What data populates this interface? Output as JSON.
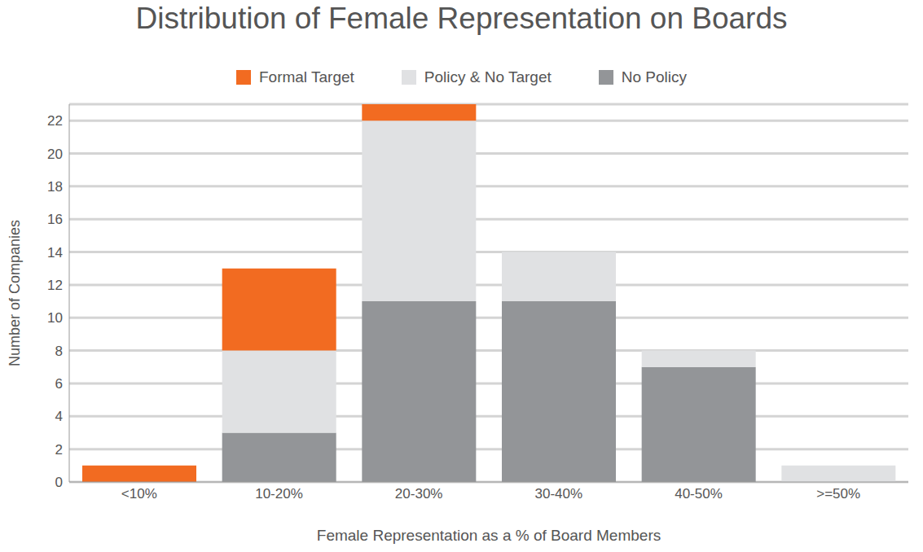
{
  "chart_data": {
    "type": "bar",
    "title": "Distribution of Female Representation on Boards",
    "x_label": "Female Representation as a % of Board Members",
    "y_label": "Number of Companies",
    "categories": [
      "<10%",
      "10-20%",
      "20-30%",
      "30-40%",
      "40-50%",
      ">=50%"
    ],
    "series": [
      {
        "name": "Formal Target",
        "color": "#f26b21",
        "values": [
          1,
          5,
          1,
          0,
          0,
          0
        ]
      },
      {
        "name": "Policy & No Target",
        "color": "#e0e1e3",
        "values": [
          0,
          5,
          11,
          3,
          1,
          1
        ]
      },
      {
        "name": "No Policy",
        "color": "#939598",
        "values": [
          0,
          3,
          11,
          11,
          7,
          0
        ]
      }
    ],
    "stacked": true,
    "ylim": [
      0,
      23
    ],
    "yticks": [
      0,
      2,
      4,
      6,
      8,
      10,
      12,
      14,
      16,
      18,
      20,
      22
    ],
    "grid": true,
    "legend": "top"
  }
}
